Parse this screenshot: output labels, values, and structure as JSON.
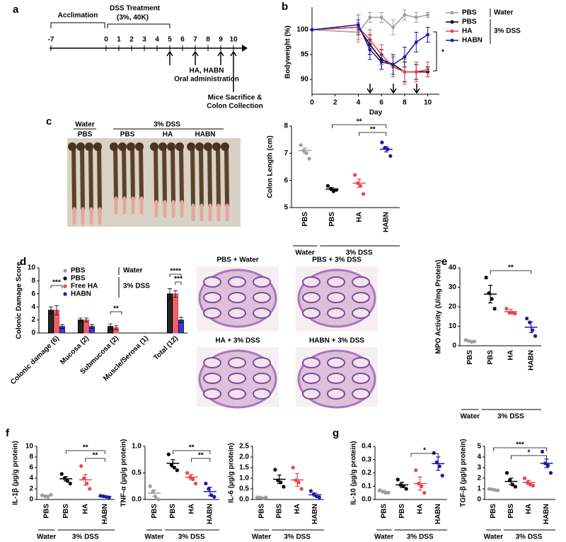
{
  "panel_labels": [
    "a",
    "b",
    "c",
    "d",
    "e",
    "f",
    "g"
  ],
  "timeline": {
    "stages": [
      "Acclimation",
      "DSS Treatment",
      "(3%, 40K)"
    ],
    "days": [
      -7,
      0,
      1,
      2,
      3,
      4,
      5,
      6,
      7,
      8,
      9,
      10
    ],
    "events": [
      "HA, HABN",
      "Oral administration",
      "Mice Sacrifice &",
      "Colon Collection"
    ]
  },
  "photo_labels": {
    "groups": [
      "Water",
      "3% DSS"
    ],
    "treatments": [
      "PBS",
      "PBS",
      "HA",
      "HABN"
    ]
  },
  "histology": [
    "PBS + Water",
    "PBS + 3% DSS",
    "HA + 3% DSS",
    "HABN + 3% DSS"
  ],
  "chart_data": [
    {
      "type": "line",
      "y_label": "Bodyweight (%)",
      "x_label": "Day",
      "x": [
        0,
        4,
        5,
        6,
        7,
        8,
        9,
        10
      ],
      "xlim": [
        0,
        11
      ],
      "xticks": [
        0,
        2,
        4,
        6,
        8,
        10
      ],
      "ylim": [
        87,
        104
      ],
      "yticks": [
        90,
        95,
        100
      ],
      "legend_groups": [
        "Water",
        "3% DSS"
      ],
      "annotations": [
        "*"
      ],
      "series": [
        {
          "name": "PBS",
          "color": "#9e9e9e",
          "values": [
            100,
            99.5,
            102.5,
            102.5,
            100.5,
            103,
            102.5,
            103
          ],
          "errors": [
            0,
            2,
            1,
            1,
            1.5,
            1,
            1,
            0.5
          ]
        },
        {
          "name": "PBS",
          "color": "#000000",
          "values": [
            100,
            100.5,
            97,
            94,
            93,
            91.5,
            91.5,
            91.5
          ],
          "errors": [
            0,
            1.5,
            2,
            2,
            2,
            2,
            1.5,
            1
          ]
        },
        {
          "name": "HA",
          "color": "#e8474c",
          "values": [
            100,
            100.5,
            98,
            95,
            92.5,
            91.5,
            91.5,
            92
          ],
          "errors": [
            0,
            2.5,
            2,
            2,
            2,
            2.5,
            2,
            1.5
          ]
        },
        {
          "name": "HABN",
          "color": "#1a1aa6",
          "values": [
            100,
            101,
            96,
            93.5,
            93,
            94.5,
            97.5,
            99
          ],
          "errors": [
            0,
            1,
            2,
            1.5,
            2,
            2,
            2,
            1.5
          ]
        }
      ]
    },
    {
      "type": "dot",
      "y_label": "Colon Length (cm)",
      "categories": [
        "PBS",
        "PBS",
        "HA",
        "HABN"
      ],
      "groups": [
        "Water",
        "3% DSS"
      ],
      "colors": [
        "#9e9e9e",
        "#000000",
        "#e8474c",
        "#1a1aa6"
      ],
      "points": [
        [
          7.3,
          7.1,
          7.0,
          6.8
        ],
        [
          5.8,
          5.7,
          5.6,
          5.65
        ],
        [
          6.2,
          5.9,
          5.8,
          5.5
        ],
        [
          7.4,
          7.2,
          7.15,
          6.9
        ]
      ],
      "means": [
        7.1,
        5.68,
        5.9,
        7.15
      ],
      "errors": [
        0.1,
        0.05,
        0.15,
        0.1
      ],
      "ylim": [
        5,
        8
      ],
      "yticks": [
        5,
        6,
        7,
        8
      ],
      "annotations": [
        "**",
        "**"
      ]
    },
    {
      "type": "bar",
      "y_label": "Colonic Damage Score",
      "categories": [
        "Colonic damage (6)",
        "Mucosa (2)",
        "Submucosa (2)",
        "Muscle/Serosa (1)",
        "Total (12)"
      ],
      "ylim": [
        0,
        10
      ],
      "yticks": [
        0,
        2,
        4,
        6,
        8,
        10
      ],
      "legend_groups": [
        "Water",
        "3% DSS"
      ],
      "annotations": [
        "***",
        "**",
        "****",
        "***"
      ],
      "series": [
        {
          "name": "PBS",
          "color": "#9e9e9e",
          "values": [
            0,
            0,
            0,
            0,
            0
          ]
        },
        {
          "name": "PBS",
          "color": "#000000",
          "values": [
            3.5,
            2,
            1,
            0,
            6
          ],
          "errors": [
            0.5,
            0.3,
            0.4,
            0,
            0.8
          ]
        },
        {
          "name": "Free HA",
          "color": "#e8474c",
          "values": [
            3.5,
            2,
            0.8,
            0,
            6
          ],
          "errors": [
            0.7,
            0.3,
            0.3,
            0,
            0.5
          ]
        },
        {
          "name": "HABN",
          "color": "#1a1aa6",
          "values": [
            1,
            1,
            0,
            0,
            2
          ],
          "errors": [
            0.3,
            0.3,
            0,
            0,
            0.4
          ]
        }
      ]
    },
    {
      "type": "dot",
      "y_label": "MPO Activity (U/mg Protein)",
      "categories": [
        "PBS",
        "PBS",
        "HA",
        "HABN"
      ],
      "groups": [
        "Water",
        "3% DSS"
      ],
      "colors": [
        "#9e9e9e",
        "#000000",
        "#e8474c",
        "#1a1aa6"
      ],
      "points": [
        [
          3,
          2.5,
          2,
          2.2
        ],
        [
          35,
          27,
          24,
          19
        ],
        [
          19,
          17,
          17,
          16.5
        ],
        [
          14,
          12,
          8,
          5
        ]
      ],
      "means": [
        2.5,
        26.5,
        17.5,
        9.5
      ],
      "errors": [
        0.3,
        4.5,
        1.2,
        2.8
      ],
      "ylim": [
        0,
        40
      ],
      "yticks": [
        0,
        10,
        20,
        30,
        40
      ],
      "annotations": [
        "**"
      ]
    },
    {
      "type": "dot",
      "y_label": "IL-1β (µg/g protein)",
      "categories": [
        "PBS",
        "PBS",
        "HA",
        "HABN"
      ],
      "groups": [
        "Water",
        "3% DSS"
      ],
      "colors": [
        "#9e9e9e",
        "#000000",
        "#e8474c",
        "#1a1aa6"
      ],
      "points": [
        [
          0.8,
          0.6,
          0.5,
          0.9
        ],
        [
          4.8,
          4,
          3.5,
          3
        ],
        [
          6.3,
          4,
          3,
          2
        ],
        [
          0.7,
          0.6,
          0.5,
          0.4
        ]
      ],
      "means": [
        0.7,
        3.9,
        3.7,
        0.55
      ],
      "errors": [
        0.1,
        0.4,
        1,
        0.1
      ],
      "ylim": [
        0,
        10
      ],
      "yticks": [
        0,
        2,
        4,
        6,
        8,
        10
      ],
      "annotations": [
        "**",
        "**"
      ]
    },
    {
      "type": "dot",
      "y_label": "TNF-α (µg/g protein)",
      "categories": [
        "PBS",
        "PBS",
        "HA",
        "HABN"
      ],
      "groups": [
        "Water",
        "3% DSS"
      ],
      "colors": [
        "#9e9e9e",
        "#000000",
        "#e8474c",
        "#1a1aa6"
      ],
      "points": [
        [
          0.25,
          0.15,
          0.05,
          0.0
        ],
        [
          0.85,
          0.65,
          0.6,
          0.55
        ],
        [
          0.5,
          0.42,
          0.38,
          0.3
        ],
        [
          0.3,
          0.2,
          0.08,
          0.05
        ]
      ],
      "means": [
        0.12,
        0.68,
        0.42,
        0.15
      ],
      "errors": [
        0.06,
        0.07,
        0.05,
        0.08
      ],
      "ylim": [
        0,
        1
      ],
      "yticks": [
        {
          "value": 0,
          "label": "0.0"
        },
        0.5,
        {
          "value": 1,
          "label": "1.0"
        }
      ],
      "annotations": [
        "**",
        "**"
      ]
    },
    {
      "type": "dot",
      "y_label": "IL-6 (µg/g protein)",
      "categories": [
        "PBS",
        "PBS",
        "HA",
        "HABN"
      ],
      "groups": [
        "Water",
        "3% DSS"
      ],
      "colors": [
        "#9e9e9e",
        "#000000",
        "#e8474c",
        "#1a1aa6"
      ],
      "points": [
        [
          0.1,
          0.1,
          0.05,
          0.1
        ],
        [
          1.4,
          0.9,
          0.8,
          0.6
        ],
        [
          1.5,
          0.9,
          0.8,
          0.5
        ],
        [
          0.4,
          0.25,
          0.15,
          0.1
        ]
      ],
      "means": [
        0.09,
        0.95,
        0.92,
        0.22
      ],
      "errors": [
        0.02,
        0.2,
        0.3,
        0.08
      ],
      "ylim": [
        0,
        2.5
      ],
      "yticks": [
        {
          "value": 0,
          "label": "0.0"
        },
        0.5,
        {
          "value": 1,
          "label": "1.0"
        },
        1.5,
        {
          "value": 2,
          "label": "2.0"
        },
        2.5
      ]
    },
    {
      "type": "dot",
      "y_label": "IL-10 (µg/g protein)",
      "categories": [
        "PBS",
        "PBS",
        "HA",
        "HABN"
      ],
      "groups": [
        "Water",
        "3% DSS"
      ],
      "colors": [
        "#9e9e9e",
        "#000000",
        "#e8474c",
        "#1a1aa6"
      ],
      "points": [
        [
          0.07,
          0.06,
          0.05,
          0.05
        ],
        [
          0.15,
          0.11,
          0.1,
          0.08
        ],
        [
          0.22,
          0.12,
          0.1,
          0.05
        ],
        [
          0.35,
          0.28,
          0.25,
          0.18
        ]
      ],
      "means": [
        0.06,
        0.11,
        0.12,
        0.27
      ],
      "errors": [
        0.01,
        0.02,
        0.05,
        0.05
      ],
      "ylim": [
        0,
        0.4
      ],
      "yticks": [
        {
          "value": 0,
          "label": "0.0"
        },
        0.1,
        0.2,
        0.3,
        0.4
      ],
      "annotations": [
        "*"
      ]
    },
    {
      "type": "dot",
      "y_label": "TGF-β (µg/g protein)",
      "categories": [
        "PBS",
        "PBS",
        "HA",
        "HABN"
      ],
      "groups": [
        "Water",
        "3% DSS"
      ],
      "colors": [
        "#9e9e9e",
        "#000000",
        "#e8474c",
        "#1a1aa6"
      ],
      "points": [
        [
          1.0,
          0.95,
          0.9,
          0.85
        ],
        [
          2.5,
          1.8,
          1.4,
          1.2
        ],
        [
          2,
          1.6,
          1.4,
          1.3
        ],
        [
          4.5,
          3.4,
          3.2,
          2.5
        ]
      ],
      "means": [
        0.92,
        1.7,
        1.6,
        3.4
      ],
      "errors": [
        0.05,
        0.3,
        0.2,
        0.4
      ],
      "ylim": [
        0,
        5
      ],
      "yticks": [
        0,
        1,
        2,
        3,
        4,
        5
      ],
      "annotations": [
        "***",
        "*"
      ]
    }
  ]
}
